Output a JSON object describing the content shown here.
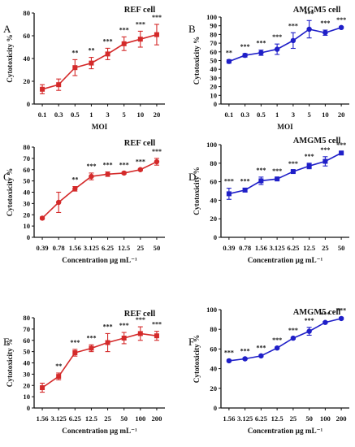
{
  "chart_data": [
    {
      "panel": "A",
      "type": "line",
      "title": "REF cell",
      "xlabel": "MOI",
      "ylabel": "Cytotoxicity %",
      "categories": [
        "0.1",
        "0.3",
        "0.5",
        "1",
        "3",
        "5",
        "10",
        "20"
      ],
      "values": [
        13,
        17,
        32,
        36,
        44,
        53,
        57,
        61
      ],
      "errors": [
        4,
        5,
        7,
        5,
        5,
        6,
        7,
        9
      ],
      "significance": [
        "",
        "",
        "**",
        "**",
        "***",
        "***",
        "***",
        "***"
      ],
      "ylim": [
        0,
        80
      ],
      "yticks": [
        0,
        20,
        40,
        60,
        80
      ],
      "color": "#d42a2a",
      "marker": "square"
    },
    {
      "panel": "B",
      "type": "line",
      "title": "AMGM5 cell",
      "xlabel": "MOI",
      "ylabel": "Cytotoxicity %",
      "categories": [
        "0.1",
        "0.3",
        "0.5",
        "1",
        "3",
        "5",
        "10",
        "20"
      ],
      "values": [
        49,
        56,
        59,
        63,
        73,
        86,
        82,
        88
      ],
      "errors": [
        2,
        2,
        3,
        6,
        9,
        10,
        3,
        1
      ],
      "significance": [
        "**",
        "***",
        "***",
        "***",
        "***",
        "***",
        "***",
        "***"
      ],
      "ylim": [
        0,
        100
      ],
      "yticks": [
        0,
        10,
        20,
        30,
        40,
        50,
        60,
        70,
        80,
        90,
        100
      ],
      "color": "#1f1fc8",
      "marker": "circle"
    },
    {
      "panel": "C",
      "type": "line",
      "title": "REF cell",
      "xlabel": "Concentration µg mL⁻¹",
      "ylabel": "Cytotoxicity %",
      "categories": [
        "0.39",
        "0.78",
        "1.56",
        "3.125",
        "6.25",
        "12.5",
        "25",
        "50"
      ],
      "values": [
        17,
        31,
        43,
        54,
        56,
        57,
        60,
        67
      ],
      "errors": [
        1,
        9,
        2,
        3,
        2,
        1,
        1,
        3
      ],
      "significance": [
        "",
        "",
        "**",
        "***",
        "***",
        "***",
        "***",
        "***"
      ],
      "ylim": [
        0,
        80
      ],
      "yticks": [
        0,
        10,
        20,
        30,
        40,
        50,
        60,
        70,
        80
      ],
      "color": "#d42a2a",
      "marker": "circle"
    },
    {
      "panel": "D",
      "type": "line",
      "title": "AMGM5 cell",
      "xlabel": "Concentration µg mL⁻¹",
      "ylabel": "Cytotoxicity %",
      "categories": [
        "0.39",
        "0.78",
        "1.56",
        "3.125",
        "6.25",
        "12.5",
        "25",
        "50"
      ],
      "values": [
        47,
        51,
        61,
        63,
        71,
        77,
        82,
        91
      ],
      "errors": [
        6,
        2,
        4,
        1,
        1,
        3,
        5,
        1
      ],
      "significance": [
        "***",
        "***",
        "***",
        "***",
        "***",
        "***",
        "***",
        "***"
      ],
      "ylim": [
        0,
        100
      ],
      "yticks": [
        0,
        20,
        40,
        60,
        80,
        100
      ],
      "color": "#1f1fc8",
      "marker": "square"
    },
    {
      "panel": "E",
      "type": "line",
      "title": "REF cell",
      "xlabel": "Concentration µg mL⁻¹",
      "ylabel": "Cytotoxicity %",
      "categories": [
        "1.56",
        "3.125",
        "6.25",
        "12.5",
        "25",
        "50",
        "100",
        "200"
      ],
      "values": [
        18,
        28,
        49,
        53,
        58,
        62,
        66,
        64
      ],
      "errors": [
        4,
        3,
        3,
        3,
        8,
        5,
        6,
        4
      ],
      "significance": [
        "",
        "**",
        "***",
        "***",
        "***",
        "***",
        "***",
        "***"
      ],
      "ylim": [
        0,
        80
      ],
      "yticks": [
        0,
        10,
        20,
        30,
        40,
        50,
        60,
        70,
        80
      ],
      "color": "#d42a2a",
      "marker": "square"
    },
    {
      "panel": "F",
      "type": "line",
      "title": "AMGM5 cell",
      "xlabel": "Concentration µg mL⁻¹",
      "ylabel": "Cytotoxicity %",
      "categories": [
        "1.56",
        "3.125",
        "6.25",
        "12.5",
        "25",
        "50",
        "100",
        "200"
      ],
      "values": [
        48,
        50,
        53,
        61,
        71,
        78,
        87,
        91
      ],
      "errors": [
        1,
        1,
        1,
        1,
        1,
        4,
        1,
        1
      ],
      "significance": [
        "***",
        "***",
        "***",
        "***",
        "***",
        "***",
        "***",
        "***"
      ],
      "ylim": [
        0,
        100
      ],
      "yticks": [
        0,
        20,
        40,
        60,
        80,
        100
      ],
      "color": "#1f1fc8",
      "marker": "circle"
    }
  ]
}
